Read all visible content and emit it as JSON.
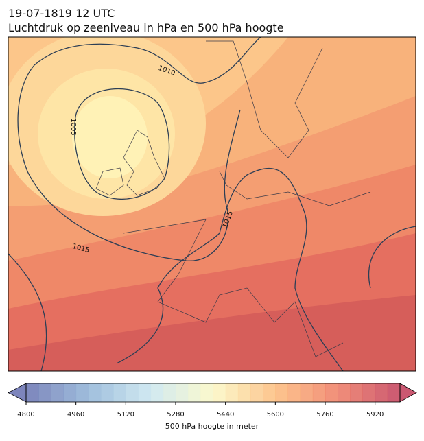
{
  "header": {
    "title": "19-07-1819 12 UTC",
    "subtitle": "Luchtdruk op zeeniveau in hPa en 500 hPa hoogte"
  },
  "map": {
    "contour_labels": [
      1010,
      1005,
      1015,
      1015
    ]
  },
  "colorbar": {
    "label": "500 hPa hoogte in meter",
    "range": [
      4800,
      6000
    ],
    "ticks": [
      4800,
      4960,
      5120,
      5280,
      5440,
      5600,
      5760,
      5920
    ],
    "step": 40,
    "colors": [
      "#6670b0",
      "#8fb3d6",
      "#c9e6ef",
      "#fbf8c4",
      "#fdbb7a",
      "#ee7a62",
      "#c23b58"
    ]
  }
}
